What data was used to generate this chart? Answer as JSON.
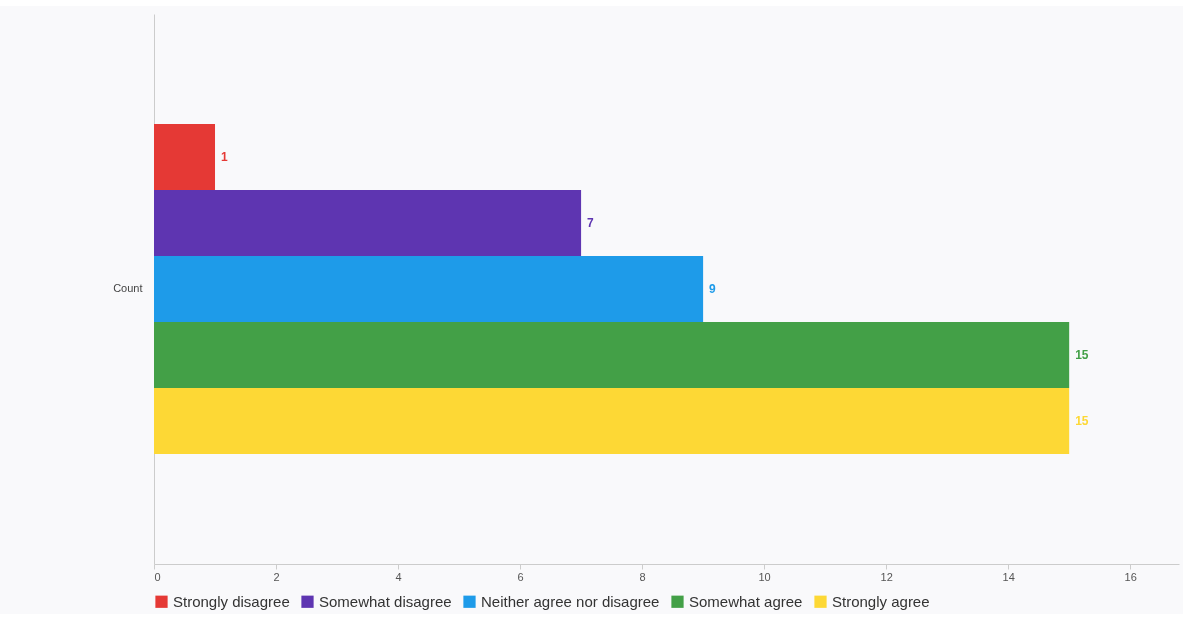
{
  "chart_data": {
    "type": "bar",
    "orientation": "horizontal",
    "categories": [
      "Count"
    ],
    "series": [
      {
        "name": "Strongly disagree",
        "color": "#e53935",
        "values": [
          1
        ]
      },
      {
        "name": "Somewhat disagree",
        "color": "#5e35b1",
        "values": [
          7
        ]
      },
      {
        "name": "Neither agree nor disagree",
        "color": "#1e9be9",
        "values": [
          9
        ]
      },
      {
        "name": "Somewhat agree",
        "color": "#43a047",
        "values": [
          15
        ]
      },
      {
        "name": "Strongly agree",
        "color": "#fdd835",
        "values": [
          15
        ]
      }
    ],
    "xlim": [
      0,
      16.8
    ],
    "xticks": [
      0,
      2,
      4,
      6,
      8,
      10,
      12,
      14,
      16
    ],
    "grid": false,
    "legend": "bottom",
    "data_labels": true
  }
}
